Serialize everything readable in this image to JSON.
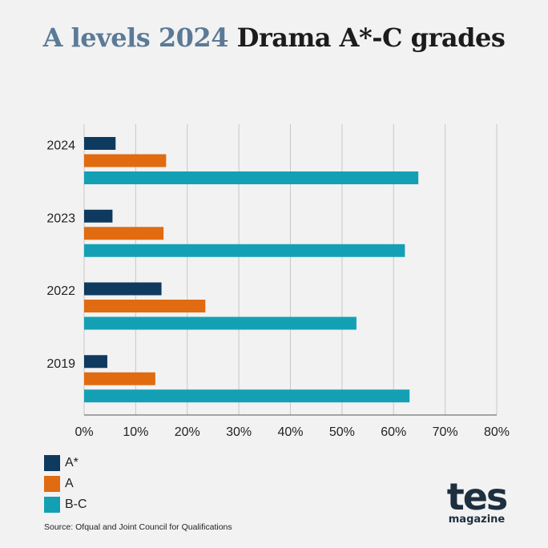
{
  "title": {
    "lead": "A levels 2024",
    "rest": "Drama A*-C grades"
  },
  "source": "Source: Ofqual and Joint Council for Qualifications",
  "logo": {
    "word": "tes",
    "sub": "magazine"
  },
  "colors": {
    "astar": "#0f3a5f",
    "a": "#e06b10",
    "bc": "#14a0b4",
    "grid": "#c8c8c8",
    "text": "#222222"
  },
  "chart_data": {
    "type": "bar",
    "orientation": "horizontal",
    "categories": [
      "2024",
      "2023",
      "2022",
      "2019"
    ],
    "series": [
      {
        "name": "A*",
        "color": "#0f3a5f",
        "values": [
          6.1,
          5.5,
          15.0,
          4.5
        ]
      },
      {
        "name": "A",
        "color": "#e06b10",
        "values": [
          15.9,
          15.4,
          23.5,
          13.8
        ]
      },
      {
        "name": "B-C",
        "color": "#14a0b4",
        "values": [
          64.8,
          62.2,
          52.8,
          63.1
        ]
      }
    ],
    "xlim": [
      0,
      80
    ],
    "xticks": [
      "0%",
      "10%",
      "20%",
      "30%",
      "40%",
      "50%",
      "60%",
      "70%",
      "80%"
    ],
    "grid": true,
    "legend_position": "bottom-left"
  }
}
